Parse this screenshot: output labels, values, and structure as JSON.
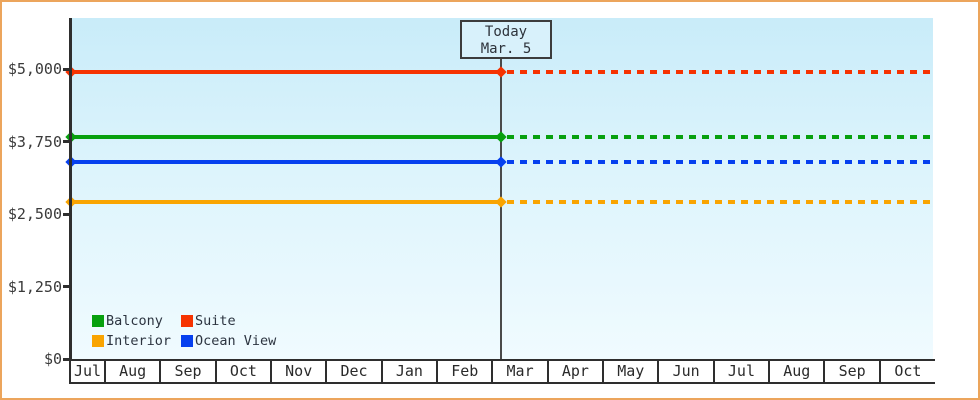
{
  "chart_data": {
    "type": "line",
    "title": "",
    "x_categories": [
      "Jul",
      "Aug",
      "Sep",
      "Oct",
      "Nov",
      "Dec",
      "Jan",
      "Feb",
      "Mar",
      "Apr",
      "May",
      "Jun",
      "Jul",
      "Aug",
      "Sep",
      "Oct"
    ],
    "y_ticks": [
      {
        "value": 5000,
        "label": "$5,000"
      },
      {
        "value": 3750,
        "label": "$3,750"
      },
      {
        "value": 2500,
        "label": "$2,500"
      },
      {
        "value": 1250,
        "label": "$1,250"
      },
      {
        "value": 0,
        "label": "$0"
      }
    ],
    "ylim": [
      0,
      5880
    ],
    "series": [
      {
        "name": "Suite",
        "color": "#f63301",
        "value": 4950
      },
      {
        "name": "Balcony",
        "color": "#07a00e",
        "value": 3825
      },
      {
        "name": "Ocean View",
        "color": "#0640ef",
        "value": 3400
      },
      {
        "name": "Interior",
        "color": "#f9a401",
        "value": 2700
      }
    ],
    "line_style": {
      "before_today": "solid",
      "after_today": "dotted"
    },
    "today_marker": {
      "title": "Today",
      "date": "Mar. 5",
      "month_index": 8,
      "fraction_into_month": 0.13
    },
    "legend": [
      {
        "label": "Balcony",
        "color": "#07a00e"
      },
      {
        "label": "Suite",
        "color": "#f63301"
      },
      {
        "label": "Interior",
        "color": "#f9a401"
      },
      {
        "label": "Ocean View",
        "color": "#0640ef"
      }
    ]
  },
  "colors": {
    "frame_border": "#eca55c",
    "plot_bg_top": "#c9ecf9",
    "plot_bg_bottom": "#f0fbff",
    "axis": "#2e2e2e",
    "text": "#2d333b",
    "today_box_bg": "#d8f1fb",
    "today_line": "#4a4a4a"
  }
}
